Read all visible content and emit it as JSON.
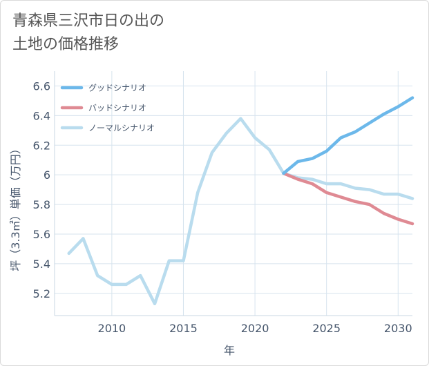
{
  "chart_data": {
    "type": "line",
    "title_line1": "青森県三沢市日の出の",
    "title_line2": "土地の価格推移",
    "xlabel": "年",
    "ylabel": "坪（3.3㎡）単価（万円）",
    "xlim": [
      2006,
      2031
    ],
    "ylim": [
      5.05,
      6.7
    ],
    "x_ticks": [
      2010,
      2015,
      2020,
      2025,
      2030
    ],
    "x_tick_labels": [
      "2010",
      "2015",
      "2020",
      "2025",
      "2030"
    ],
    "y_ticks": [
      5.2,
      5.4,
      5.6,
      5.8,
      6.0,
      6.2,
      6.4,
      6.6
    ],
    "y_tick_labels": [
      "5.2",
      "5.4",
      "5.6",
      "5.8",
      "6",
      "6.2",
      "6.4",
      "6.6"
    ],
    "grid": true,
    "legend_position": "top-left",
    "series": [
      {
        "name": "グッドシナリオ",
        "color": "#6cb8ea",
        "x": [
          2022,
          2023,
          2024,
          2025,
          2026,
          2027,
          2028,
          2029,
          2030,
          2031
        ],
        "values": [
          6.01,
          6.09,
          6.11,
          6.16,
          6.25,
          6.29,
          6.35,
          6.41,
          6.46,
          6.52
        ]
      },
      {
        "name": "バッドシナリオ",
        "color": "#df8a93",
        "x": [
          2022,
          2023,
          2024,
          2025,
          2026,
          2027,
          2028,
          2029,
          2030,
          2031
        ],
        "values": [
          6.01,
          5.97,
          5.94,
          5.88,
          5.85,
          5.82,
          5.8,
          5.74,
          5.7,
          5.67
        ]
      },
      {
        "name": "ノーマルシナリオ",
        "color": "#b9dcee",
        "x": [
          2007,
          2008,
          2009,
          2010,
          2011,
          2012,
          2013,
          2014,
          2015,
          2016,
          2017,
          2018,
          2019,
          2020,
          2021,
          2022,
          2023,
          2024,
          2025,
          2026,
          2027,
          2028,
          2029,
          2030,
          2031
        ],
        "values": [
          5.47,
          5.57,
          5.32,
          5.26,
          5.26,
          5.32,
          5.13,
          5.42,
          5.42,
          5.88,
          6.15,
          6.28,
          6.38,
          6.25,
          6.17,
          6.01,
          5.98,
          5.97,
          5.94,
          5.94,
          5.91,
          5.9,
          5.87,
          5.87,
          5.84
        ]
      }
    ]
  }
}
